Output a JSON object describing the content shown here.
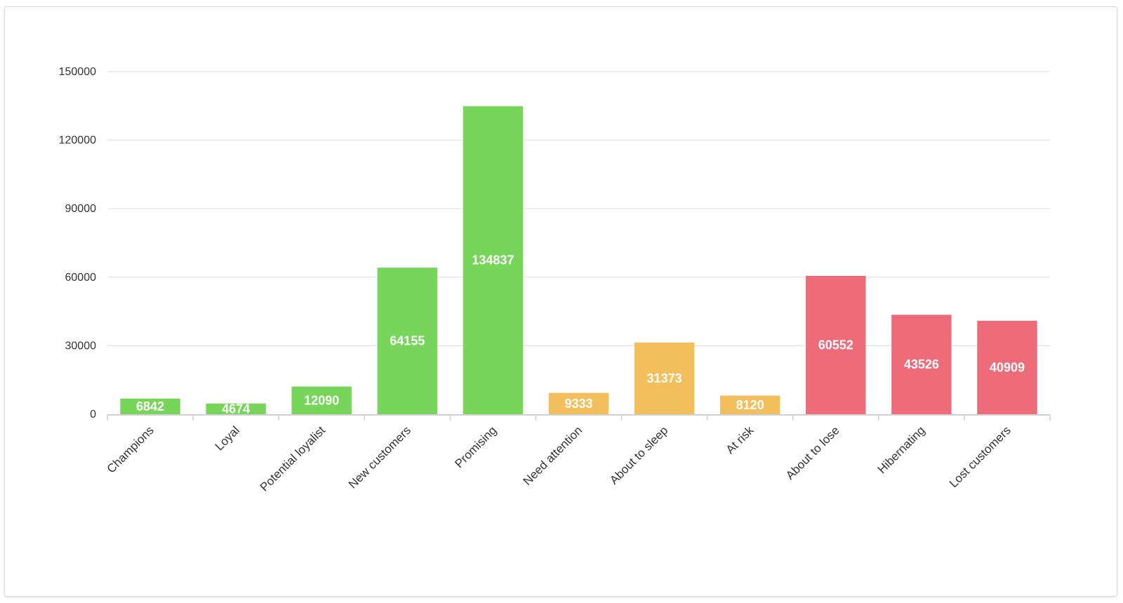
{
  "chart_data": {
    "type": "bar",
    "title": "",
    "xlabel": "",
    "ylabel": "",
    "ylim": [
      0,
      150000
    ],
    "yticks": [
      0,
      30000,
      60000,
      90000,
      120000,
      150000
    ],
    "grid": true,
    "legend": "none",
    "categories": [
      "Champions",
      "Loyal",
      "Potential loyalist",
      "New customers",
      "Promising",
      "Need attention",
      "About to sleep",
      "At risk",
      "About to lose",
      "Hibernating",
      "Lost customers"
    ],
    "values": [
      6842,
      4674,
      12090,
      64155,
      134837,
      9333,
      31373,
      8120,
      60552,
      43526,
      40909
    ],
    "colors": [
      "#77d65a",
      "#77d65a",
      "#77d65a",
      "#77d65a",
      "#77d65a",
      "#f3be5c",
      "#f3be5c",
      "#f3be5c",
      "#ee6c7a",
      "#ee6c7a",
      "#ee6c7a"
    ]
  }
}
